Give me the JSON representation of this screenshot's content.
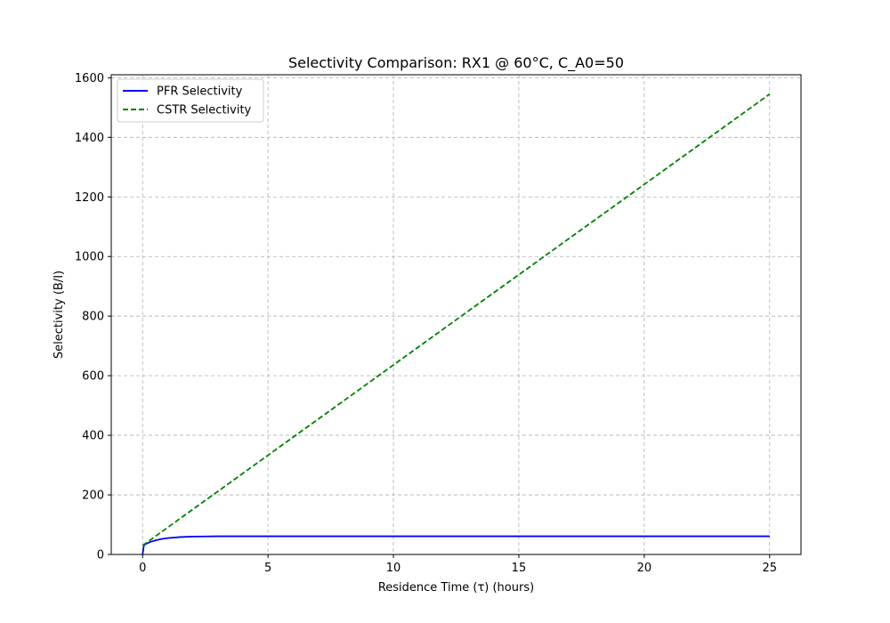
{
  "chart_data": {
    "type": "line",
    "title": "Selectivity Comparison: RX1 @ 60°C, C_A0=50",
    "xlabel": "Residence Time (τ) (hours)",
    "ylabel": "Selectivity (B/I)",
    "xlim": [
      -1.25,
      26.25
    ],
    "ylim": [
      0,
      1610
    ],
    "xticks": [
      0,
      5,
      10,
      15,
      20,
      25
    ],
    "yticks": [
      0,
      200,
      400,
      600,
      800,
      1000,
      1200,
      1400,
      1600
    ],
    "grid": true,
    "legend_position": "top-left",
    "series": [
      {
        "name": "PFR Selectivity",
        "color": "#0000ff",
        "style": "solid",
        "x": [
          0,
          0.05,
          0.1,
          0.2,
          0.3,
          0.5,
          0.75,
          1.0,
          1.5,
          2.0,
          2.5,
          3.0,
          4.0,
          5.0,
          7.5,
          10.0,
          12.5,
          15.0,
          17.5,
          20.0,
          22.5,
          25.0
        ],
        "y": [
          0,
          30,
          34,
          38,
          42,
          47,
          52,
          55,
          58.5,
          60,
          60.5,
          61,
          61,
          61,
          61,
          61,
          61,
          61,
          61,
          61,
          61,
          61
        ]
      },
      {
        "name": "CSTR Selectivity",
        "color": "#008000",
        "style": "dashed",
        "x": [
          0,
          5,
          10,
          15,
          20,
          25
        ],
        "y": [
          30,
          333,
          636,
          939,
          1242,
          1545
        ]
      }
    ]
  }
}
